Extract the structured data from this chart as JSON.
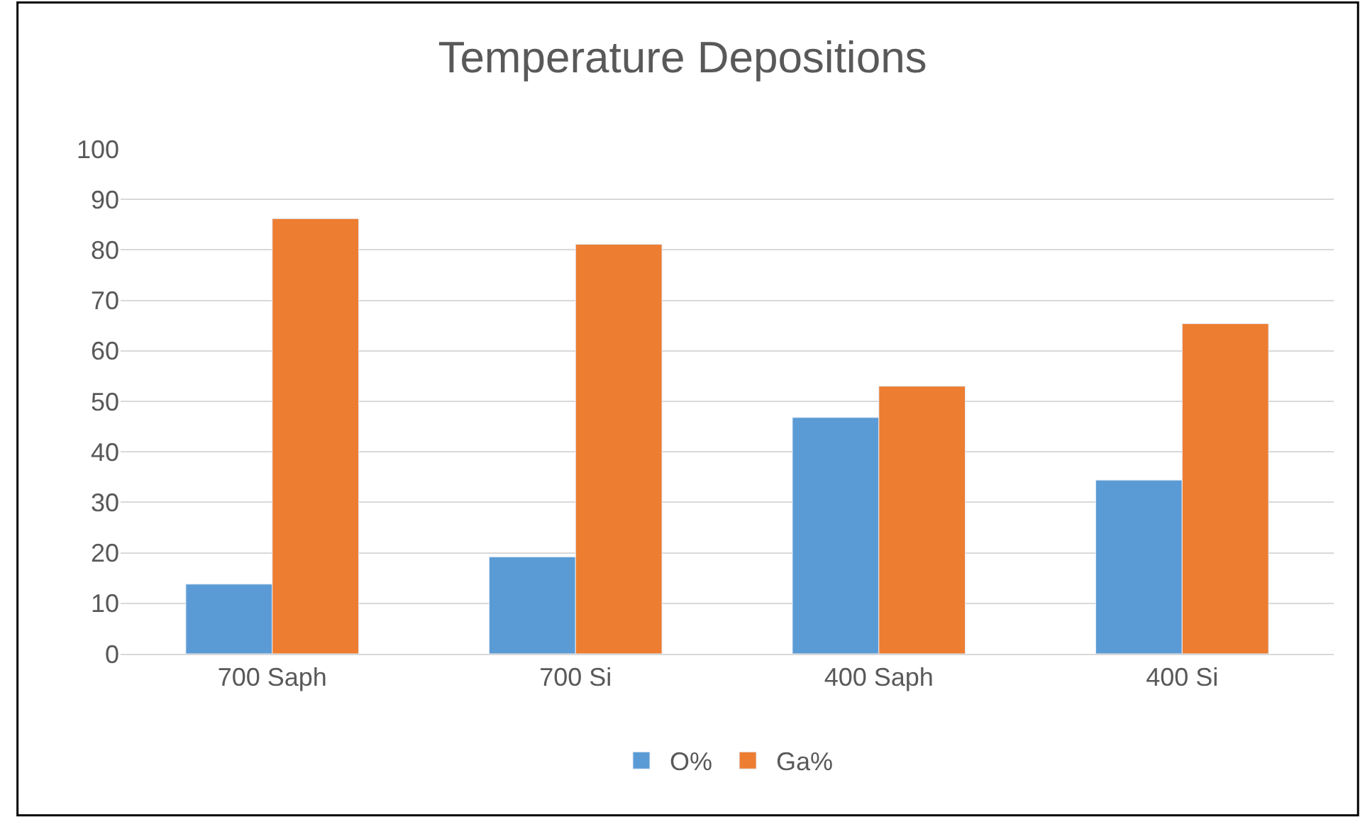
{
  "chart_data": {
    "type": "bar",
    "title": "Temperature Depositions",
    "categories": [
      "700 Saph",
      "700 Si",
      "400 Saph",
      "400 Si"
    ],
    "series": [
      {
        "name": "O%",
        "color": "#5b9bd5",
        "values": [
          13.8,
          19.2,
          46.8,
          34.4
        ]
      },
      {
        "name": "Ga%",
        "color": "#ed7d31",
        "values": [
          86.2,
          81.1,
          53.0,
          65.4
        ]
      }
    ],
    "ylim": [
      0,
      100
    ],
    "yticks": [
      0,
      10,
      20,
      30,
      40,
      50,
      60,
      70,
      80,
      90,
      100
    ],
    "grid": "y",
    "legend": "bottom"
  }
}
